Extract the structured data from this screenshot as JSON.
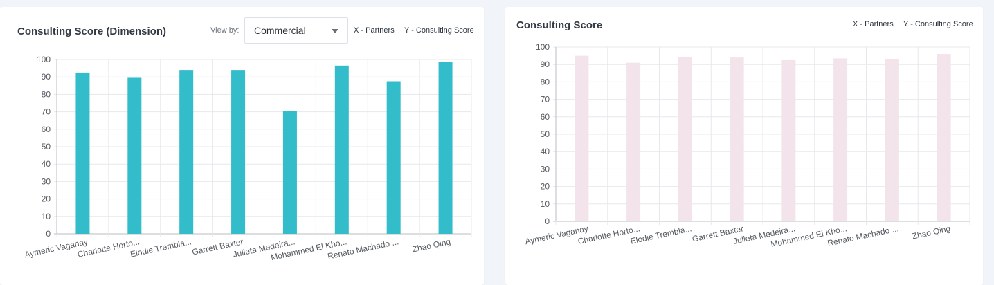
{
  "left_panel": {
    "title": "Consulting Score (Dimension)",
    "view_by_label": "View by:",
    "view_by_value": "Commercial",
    "x_axis_key": "X - ",
    "x_axis_value": "Partners",
    "y_axis_key": "Y - ",
    "y_axis_value": "Consulting Score"
  },
  "right_panel": {
    "title": "Consulting Score",
    "x_axis_key": "X - ",
    "x_axis_value": "Partners",
    "y_axis_key": "Y - ",
    "y_axis_value": "Consulting Score"
  },
  "chart_data": [
    {
      "type": "bar",
      "title": "Consulting Score (Dimension)",
      "categories": [
        "Aymeric Vaganay",
        "Charlotte Horto...",
        "Elodie  Trembla...",
        "Garrett Baxter",
        "Julieta Medeira...",
        "Mohammed El Kho...",
        "Renato Machado ...",
        "Zhao Qing"
      ],
      "values": [
        92.5,
        89.5,
        94,
        94,
        70.5,
        96.5,
        87.5,
        98.5
      ],
      "ylim": [
        0,
        100
      ],
      "yticks": [
        0,
        10,
        20,
        30,
        40,
        50,
        60,
        70,
        80,
        90,
        100
      ],
      "grid": true,
      "color": "#33bcc9"
    },
    {
      "type": "bar",
      "title": "Consulting Score",
      "categories": [
        "Aymeric Vaganay",
        "Charlotte Horto...",
        "Elodie  Trembla...",
        "Garrett Baxter",
        "Julieta Medeira...",
        "Mohammed El Kho...",
        "Renato Machado ...",
        "Zhao Qing"
      ],
      "values": [
        95,
        91,
        94.5,
        94,
        92.5,
        93.5,
        93,
        96
      ],
      "ylim": [
        0,
        100
      ],
      "yticks": [
        0,
        10,
        20,
        30,
        40,
        50,
        60,
        70,
        80,
        90,
        100
      ],
      "grid": true,
      "color": "#f2e4ea"
    }
  ]
}
